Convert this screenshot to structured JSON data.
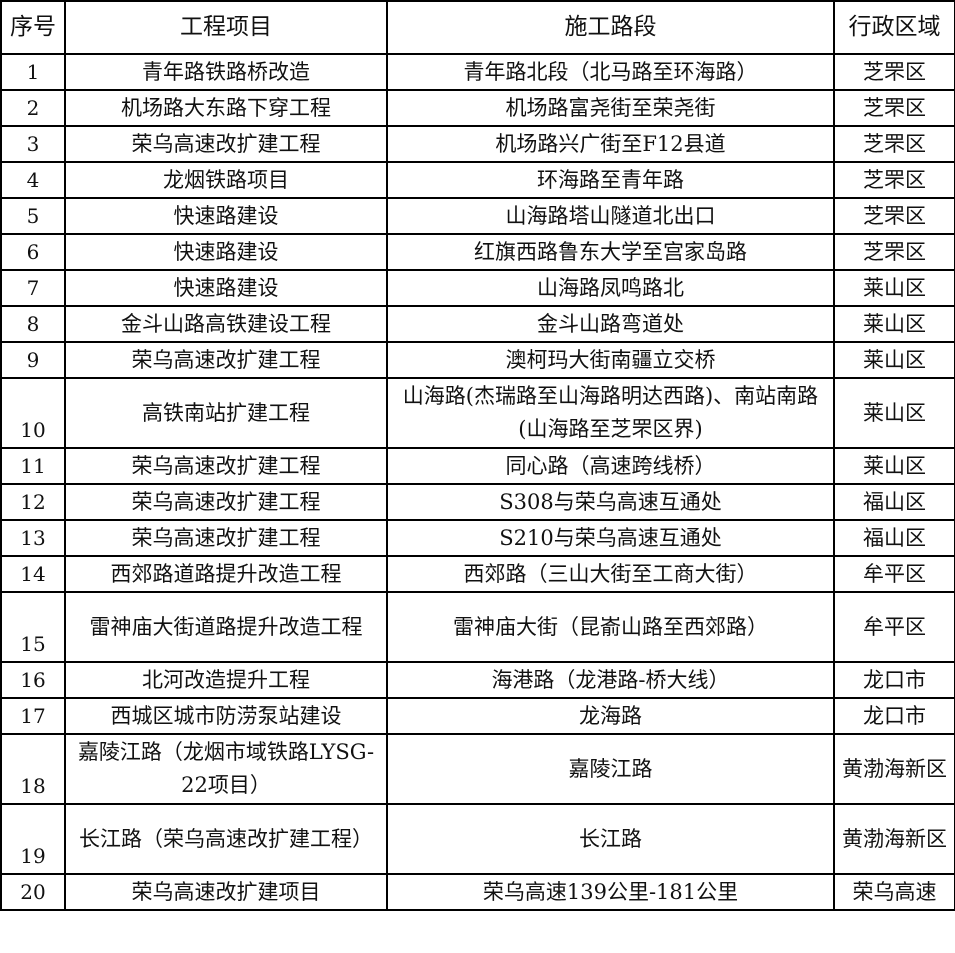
{
  "headers": [
    "序号",
    "工程项目",
    "施工路段",
    "行政区域"
  ],
  "rows": [
    {
      "no": "1",
      "project": "青年路铁路桥改造",
      "section": "青年路北段（北马路至环海路）",
      "district": "芝罘区"
    },
    {
      "no": "2",
      "project": "机场路大东路下穿工程",
      "section": "机场路富尧街至荣尧街",
      "district": "芝罘区"
    },
    {
      "no": "3",
      "project": "荣乌高速改扩建工程",
      "section": "机场路兴广街至F12县道",
      "district": "芝罘区"
    },
    {
      "no": "4",
      "project": "龙烟铁路项目",
      "section": "环海路至青年路",
      "district": "芝罘区"
    },
    {
      "no": "5",
      "project": "快速路建设",
      "section": "山海路塔山隧道北出口",
      "district": "芝罘区"
    },
    {
      "no": "6",
      "project": "快速路建设",
      "section": "红旗西路鲁东大学至宫家岛路",
      "district": "芝罘区"
    },
    {
      "no": "7",
      "project": "快速路建设",
      "section": "山海路凤鸣路北",
      "district": "莱山区"
    },
    {
      "no": "8",
      "project": "金斗山路高铁建设工程",
      "section": "金斗山路弯道处",
      "district": "莱山区"
    },
    {
      "no": "9",
      "project": "荣乌高速改扩建工程",
      "section": "澳柯玛大街南疆立交桥",
      "district": "莱山区"
    },
    {
      "no": "10",
      "project": "高铁南站扩建工程",
      "section": "山海路(杰瑞路至山海路明达西路)、南站南路(山海路至芝罘区界)",
      "district": "莱山区"
    },
    {
      "no": "11",
      "project": "荣乌高速改扩建工程",
      "section": "同心路（高速跨线桥）",
      "district": "莱山区"
    },
    {
      "no": "12",
      "project": "荣乌高速改扩建工程",
      "section": "S308与荣乌高速互通处",
      "district": "福山区"
    },
    {
      "no": "13",
      "project": "荣乌高速改扩建工程",
      "section": "S210与荣乌高速互通处",
      "district": "福山区"
    },
    {
      "no": "14",
      "project": "西郊路道路提升改造工程",
      "section": "西郊路（三山大街至工商大街）",
      "district": "牟平区"
    },
    {
      "no": "15",
      "project": "雷神庙大街道路提升改造工程",
      "section": "雷神庙大街（昆嵛山路至西郊路）",
      "district": "牟平区"
    },
    {
      "no": "16",
      "project": "北河改造提升工程",
      "section": "海港路（龙港路-桥大线）",
      "district": "龙口市"
    },
    {
      "no": "17",
      "project": "西城区城市防涝泵站建设",
      "section": "龙海路",
      "district": "龙口市"
    },
    {
      "no": "18",
      "project": "嘉陵江路（龙烟市域铁路LYSG-22项目）",
      "section": "嘉陵江路",
      "district": "黄渤海新区"
    },
    {
      "no": "19",
      "project": "长江路（荣乌高速改扩建工程）",
      "section": "长江路",
      "district": "黄渤海新区"
    },
    {
      "no": "20",
      "project": "荣乌高速改扩建项目",
      "section": "荣乌高速139公里-181公里",
      "district": "荣乌高速"
    }
  ]
}
